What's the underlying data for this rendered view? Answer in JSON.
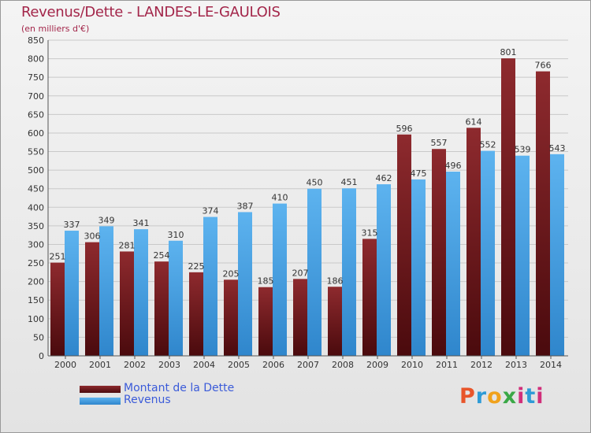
{
  "header": {
    "title": "Revenus/Dette - LANDES-LE-GAULOIS",
    "subtitle": "(en milliers d'€)"
  },
  "legend": {
    "items": [
      {
        "label": "Montant de la Dette",
        "color": "#7a1e23"
      },
      {
        "label": "Revenus",
        "color": "#4aa6e8"
      }
    ]
  },
  "logo": {
    "text": "Proxiti"
  },
  "colors": {
    "dette": "#7a1e23",
    "revenus": "#4aa6e8",
    "title": "#a3264a",
    "legend_text": "#3b5bd9"
  },
  "chart_data": {
    "type": "bar",
    "title": "Revenus/Dette - LANDES-LE-GAULOIS",
    "subtitle": "(en milliers d'€)",
    "categories": [
      "2000",
      "2001",
      "2002",
      "2003",
      "2004",
      "2005",
      "2006",
      "2007",
      "2008",
      "2009",
      "2010",
      "2011",
      "2012",
      "2013",
      "2014"
    ],
    "series": [
      {
        "name": "Montant de la Dette",
        "values": [
          251,
          306,
          281,
          254,
          225,
          205,
          185,
          207,
          186,
          315,
          596,
          557,
          614,
          801,
          766
        ]
      },
      {
        "name": "Revenus",
        "values": [
          337,
          349,
          341,
          310,
          374,
          387,
          410,
          450,
          451,
          462,
          475,
          496,
          552,
          539,
          543
        ]
      }
    ],
    "ylim": [
      0,
      850
    ],
    "yticks": [
      0,
      50,
      100,
      150,
      200,
      250,
      300,
      350,
      400,
      450,
      500,
      550,
      600,
      650,
      700,
      750,
      800,
      850
    ],
    "grid": true,
    "legend_position": "bottom-left"
  }
}
